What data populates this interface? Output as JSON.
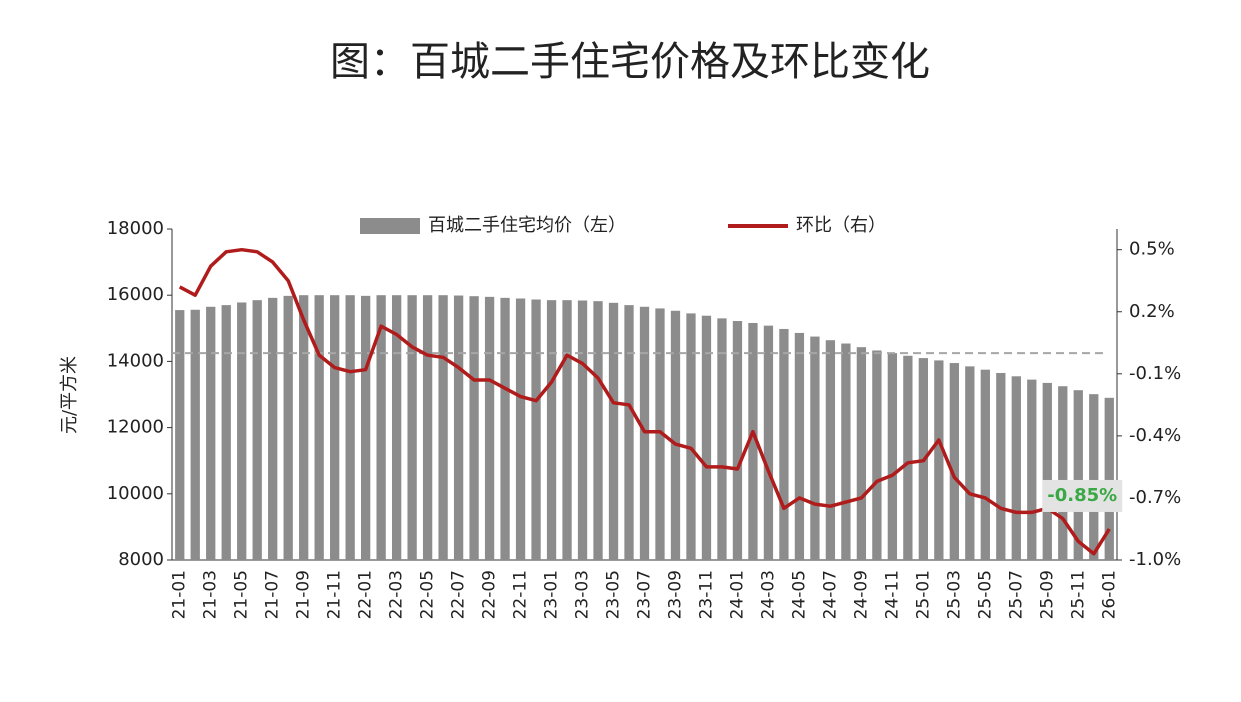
{
  "chart_data": {
    "type": "combo",
    "title": "图：百城二手住宅价格及环比变化",
    "y_label": "元/平方米",
    "categories": [
      "21-01",
      null,
      "21-03",
      null,
      "21-05",
      null,
      "21-07",
      null,
      "21-09",
      null,
      "21-11",
      null,
      "22-01",
      null,
      "22-03",
      null,
      "22-05",
      null,
      "22-07",
      null,
      "22-09",
      null,
      "22-11",
      null,
      "23-01",
      null,
      "23-03",
      null,
      "23-05",
      null,
      "23-07",
      null,
      "23-09",
      null,
      "23-11",
      null,
      "24-01",
      null,
      "24-03",
      null,
      "24-05",
      null,
      "24-07",
      null,
      "24-09",
      null,
      "24-11",
      null,
      "25-01",
      null,
      "25-03",
      null,
      "25-05",
      null,
      "25-07",
      null,
      "25-09",
      null,
      "25-11",
      null,
      "26-01"
    ],
    "series": [
      {
        "name": "百城二手住宅均价（左）",
        "type": "bar",
        "axis": "y",
        "color": "#8c8c8c",
        "values": [
          15550,
          15560,
          15650,
          15700,
          15780,
          15850,
          15920,
          15980,
          16000,
          16000,
          16000,
          16000,
          15980,
          16000,
          16000,
          16000,
          16000,
          16000,
          15990,
          15970,
          15950,
          15920,
          15900,
          15870,
          15850,
          15850,
          15840,
          15820,
          15770,
          15700,
          15650,
          15600,
          15530,
          15450,
          15380,
          15300,
          15220,
          15160,
          15080,
          14980,
          14860,
          14750,
          14640,
          14540,
          14430,
          14330,
          14250,
          14170,
          14100,
          14030,
          13950,
          13850,
          13750,
          13650,
          13550,
          13450,
          13350,
          13250,
          13130,
          13010,
          12900
        ]
      },
      {
        "name": "环比（右）",
        "type": "line",
        "axis": "y2",
        "color": "#b01c1c",
        "values": [
          0.32,
          0.28,
          0.42,
          0.49,
          0.5,
          0.49,
          0.44,
          0.35,
          0.16,
          -0.01,
          -0.07,
          -0.09,
          -0.08,
          0.13,
          0.09,
          0.03,
          -0.01,
          -0.02,
          -0.07,
          -0.13,
          -0.13,
          -0.17,
          -0.21,
          -0.23,
          -0.14,
          -0.01,
          -0.05,
          -0.12,
          -0.24,
          -0.25,
          -0.38,
          -0.38,
          -0.44,
          -0.46,
          -0.55,
          -0.55,
          -0.56,
          -0.38,
          -0.57,
          -0.75,
          -0.7,
          -0.73,
          -0.74,
          -0.72,
          -0.7,
          -0.62,
          -0.59,
          -0.53,
          -0.52,
          -0.42,
          -0.6,
          -0.68,
          -0.7,
          -0.75,
          -0.77,
          -0.77,
          -0.75,
          -0.8,
          -0.91,
          -0.97,
          -0.85
        ],
        "value_labels": [
          null,
          null,
          null,
          null,
          null,
          null,
          null,
          null,
          null,
          null,
          null,
          null,
          null,
          null,
          null,
          null,
          null,
          null,
          null,
          null,
          null,
          null,
          null,
          null,
          null,
          null,
          null,
          null,
          null,
          null,
          null,
          null,
          null,
          null,
          null,
          null,
          null,
          null,
          null,
          null,
          null,
          null,
          null,
          null,
          null,
          null,
          null,
          null,
          null,
          null,
          null,
          null,
          null,
          null,
          null,
          null,
          null,
          null,
          null,
          null,
          "-0.85%"
        ]
      }
    ],
    "ylim": [
      8000,
      18000
    ],
    "yticks": [
      8000,
      10000,
      12000,
      14000,
      16000,
      18000
    ],
    "y2lim": [
      -1.0,
      0.6
    ],
    "y2ticks": [
      {
        "value": 0.5,
        "label": "0.5%"
      },
      {
        "value": 0.2,
        "label": "0.2%"
      },
      {
        "value": -0.1,
        "label": "-0.1%"
      },
      {
        "value": -0.4,
        "label": "-0.4%"
      },
      {
        "value": -0.7,
        "label": "-0.7%"
      },
      {
        "value": -1.0,
        "label": "-1.0%"
      }
    ],
    "reference_line": 14250,
    "reference_color": "#a6a6a6"
  }
}
